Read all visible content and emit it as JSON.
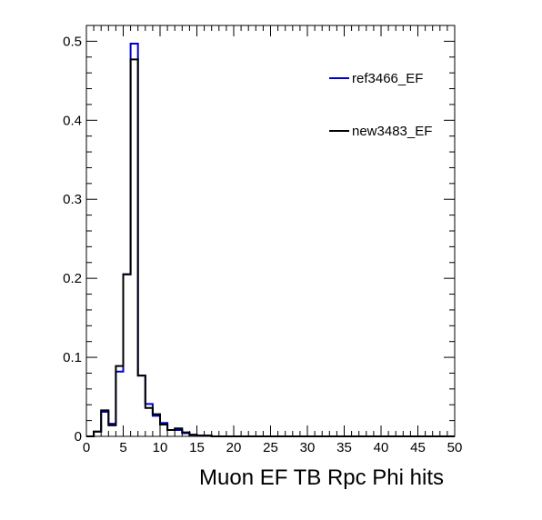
{
  "chart_data": {
    "type": "step",
    "title": "",
    "xlabel": "Muon EF TB Rpc Phi hits",
    "ylabel": "",
    "xlim": [
      0,
      50
    ],
    "ylim": [
      0,
      0.52
    ],
    "bin_width": 1,
    "grid": false,
    "legend_position": "top-right",
    "x_ticks": [
      "0",
      "5",
      "10",
      "15",
      "20",
      "25",
      "30",
      "35",
      "40",
      "45",
      "50"
    ],
    "y_ticks": [
      "0",
      "0.1",
      "0.2",
      "0.3",
      "0.4",
      "0.5"
    ],
    "bin_edges_start": [
      0,
      1,
      2,
      3,
      4,
      5,
      6,
      7,
      8,
      9,
      10,
      11,
      12,
      13,
      14,
      15,
      16,
      17,
      18,
      19,
      20,
      21,
      22,
      23,
      24,
      25,
      26,
      27,
      28,
      29,
      30,
      31,
      32,
      33,
      34,
      35,
      36,
      37,
      38,
      39,
      40,
      41,
      42,
      43,
      44,
      45,
      46,
      47,
      48,
      49
    ],
    "series": [
      {
        "name": "ref3466_EF",
        "color": "#0000cc",
        "values": [
          0,
          0.006,
          0.031,
          0.016,
          0.082,
          0.205,
          0.497,
          0.077,
          0.041,
          0.026,
          0.017,
          0.008,
          0.008,
          0.004,
          0.002,
          0.001,
          0.001,
          0,
          0,
          0,
          0,
          0,
          0,
          0,
          0,
          0,
          0,
          0,
          0,
          0,
          0,
          0,
          0,
          0,
          0,
          0,
          0,
          0,
          0,
          0,
          0,
          0,
          0,
          0,
          0,
          0,
          0,
          0,
          0,
          0
        ]
      },
      {
        "name": "new3483_EF",
        "color": "#000000",
        "values": [
          0,
          0.006,
          0.033,
          0.014,
          0.089,
          0.205,
          0.477,
          0.077,
          0.036,
          0.028,
          0.015,
          0.008,
          0.01,
          0.005,
          0.002,
          0.001,
          0.001,
          0,
          0,
          0,
          0,
          0,
          0,
          0,
          0,
          0,
          0,
          0,
          0,
          0,
          0,
          0,
          0,
          0,
          0,
          0,
          0,
          0,
          0,
          0,
          0,
          0,
          0,
          0,
          0,
          0,
          0,
          0,
          0,
          0
        ]
      }
    ]
  }
}
